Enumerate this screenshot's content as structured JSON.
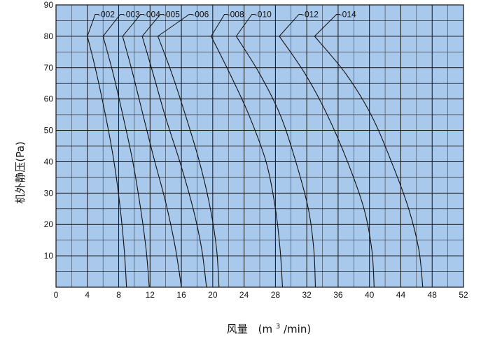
{
  "chart_data": {
    "type": "line",
    "title": "",
    "xlabel": "风量",
    "xunit_prefix": "(m",
    "xunit_sup": "3",
    "xunit_suffix": "/min)",
    "ylabel": "机外静压(Pa)",
    "xlim": [
      0,
      52
    ],
    "ylim": [
      0,
      90
    ],
    "xticks": [
      0,
      4,
      8,
      12,
      16,
      20,
      24,
      28,
      32,
      36,
      40,
      44,
      48,
      52
    ],
    "yticks": [
      10,
      20,
      30,
      40,
      50,
      60,
      70,
      80,
      90
    ],
    "grid": true,
    "legend": "none",
    "plot_bg": "#a8c8ec",
    "line_color": "#111111",
    "series": [
      {
        "name": "002",
        "x": [
          4.0,
          5.0,
          6.3,
          7.4,
          8.2,
          8.7,
          9.0
        ],
        "y": [
          80,
          70,
          55,
          40,
          25,
          12,
          0
        ],
        "label_x": 5.0,
        "label_y": 87
      },
      {
        "name": "003",
        "x": [
          6.0,
          7.3,
          8.6,
          9.8,
          10.8,
          11.5,
          11.9
        ],
        "y": [
          80,
          68,
          54,
          40,
          25,
          12,
          0
        ],
        "label_x": 8.2,
        "label_y": 87
      },
      {
        "name": "004",
        "x": [
          8.5,
          9.6,
          11.0,
          12.4,
          14.0,
          15.2,
          16.0
        ],
        "y": [
          80,
          70,
          56,
          42,
          27,
          13,
          0
        ],
        "label_x": 10.8,
        "label_y": 87
      },
      {
        "name": "005",
        "x": [
          11.0,
          12.4,
          14.0,
          15.8,
          17.5,
          18.6,
          19.2
        ],
        "y": [
          80,
          68,
          54,
          40,
          25,
          12,
          0
        ],
        "label_x": 13.3,
        "label_y": 87
      },
      {
        "name": "006",
        "x": [
          13.0,
          14.8,
          16.5,
          18.3,
          19.7,
          20.5,
          20.8
        ],
        "y": [
          80,
          68,
          55,
          40,
          25,
          12,
          0
        ],
        "label_x": 17.0,
        "label_y": 87
      },
      {
        "name": "008",
        "x": [
          19.8,
          22.2,
          24.6,
          26.8,
          28.0,
          28.6,
          28.9
        ],
        "y": [
          80,
          68,
          55,
          40,
          25,
          12,
          0
        ],
        "label_x": 21.5,
        "label_y": 87
      },
      {
        "name": "010",
        "x": [
          23.0,
          26.0,
          28.6,
          30.6,
          32.2,
          32.9,
          33.1
        ],
        "y": [
          80,
          68,
          55,
          40,
          25,
          12,
          0
        ],
        "label_x": 25.0,
        "label_y": 87
      },
      {
        "name": "012",
        "x": [
          28.5,
          31.8,
          34.6,
          37.2,
          39.3,
          40.3,
          40.6
        ],
        "y": [
          80,
          68,
          55,
          40,
          25,
          12,
          0
        ],
        "label_x": 31.0,
        "label_y": 87
      },
      {
        "name": "014",
        "x": [
          33.0,
          37.0,
          40.2,
          42.8,
          45.0,
          46.3,
          46.8
        ],
        "y": [
          80,
          68,
          55,
          40,
          25,
          12,
          0
        ],
        "label_x": 35.8,
        "label_y": 87
      }
    ]
  }
}
